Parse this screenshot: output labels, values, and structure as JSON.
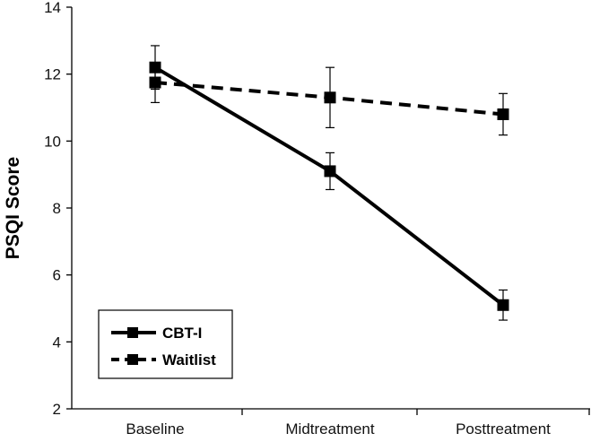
{
  "chart_data": {
    "type": "line",
    "title": "",
    "xlabel": "",
    "ylabel": "PSQI Score",
    "categories": [
      "Baseline",
      "Midtreatment",
      "Posttreatment"
    ],
    "ylim": [
      2,
      14
    ],
    "yticks": [
      2,
      4,
      6,
      8,
      10,
      12,
      14
    ],
    "grid": false,
    "legend_position": "bottom-left",
    "series": [
      {
        "name": "CBT-I",
        "values": [
          12.2,
          9.1,
          5.1
        ],
        "error": [
          0.65,
          0.55,
          0.45
        ],
        "style": "solid",
        "color": "#000000"
      },
      {
        "name": "Waitlist",
        "values": [
          11.75,
          11.3,
          10.8
        ],
        "error": [
          0.6,
          0.9,
          0.62
        ],
        "style": "dashed",
        "color": "#000000"
      }
    ]
  }
}
